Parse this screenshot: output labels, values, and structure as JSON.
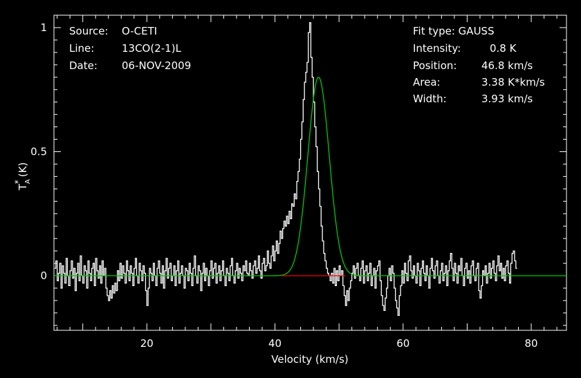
{
  "chart_data": {
    "type": "line",
    "xlabel": "Velocity (km/s)",
    "ylabel_main": "T",
    "ylabel_sub": "A",
    "ylabel_sup": "*",
    "ylabel_unit": "(K)",
    "xlim": [
      5.5,
      85.5
    ],
    "ylim": [
      -0.22,
      1.05
    ],
    "x_ticks": [
      20,
      40,
      60,
      80
    ],
    "y_ticks": [
      0,
      0.5,
      1
    ],
    "x_tick_labels": [
      "20",
      "40",
      "60",
      "80"
    ],
    "y_tick_labels": [
      "0",
      "0.5",
      "1"
    ],
    "info_left": [
      {
        "key": "Source:",
        "value": "O-CETI"
      },
      {
        "key": "Line:",
        "value": "13CO(2-1)L"
      },
      {
        "key": "Date:",
        "value": "06-NOV-2009"
      }
    ],
    "fit_type": "Fit type: GAUSS",
    "info_right": [
      {
        "key": "Intensity:",
        "value": "0.8 K"
      },
      {
        "key": "Position:",
        "value": "46.8 km/s"
      },
      {
        "key": "Area:",
        "value": "3.38 K*km/s"
      },
      {
        "key": "Width:",
        "value": "3.93 km/s"
      }
    ],
    "gaussian_fit": {
      "amplitude": 0.8,
      "center": 46.8,
      "fwhm": 3.93,
      "color": "#00cc00"
    },
    "baseline": {
      "x_start": 41.0,
      "x_end": 51.0,
      "y": 0,
      "color": "#ff0000"
    },
    "spectrum": {
      "color": "#ffffff",
      "channel_width": 0.2,
      "x_start": 5.6,
      "values": [
        0.03,
        0.06,
        -0.02,
        0.01,
        0.05,
        -0.05,
        0.04,
        0.01,
        -0.03,
        0.07,
        0.0,
        -0.04,
        0.02,
        0.06,
        -0.01,
        0.03,
        -0.06,
        0.01,
        0.05,
        -0.02,
        0.08,
        0.0,
        -0.03,
        0.04,
        0.02,
        -0.05,
        0.06,
        0.01,
        -0.02,
        0.03,
        0.05,
        -0.04,
        0.07,
        0.02,
        -0.01,
        0.04,
        -0.03,
        0.06,
        0.0,
        0.03,
        -0.05,
        -0.08,
        -0.1,
        -0.06,
        -0.09,
        -0.04,
        -0.07,
        -0.03,
        -0.06,
        0.02,
        -0.02,
        0.05,
        -0.01,
        0.04,
        0.01,
        -0.03,
        0.06,
        0.02,
        -0.02,
        0.04,
        0.01,
        -0.04,
        0.03,
        0.07,
        0.0,
        -0.03,
        0.05,
        0.02,
        -0.02,
        0.04,
        0.01,
        -0.06,
        -0.12,
        -0.05,
        0.03,
        0.01,
        -0.02,
        0.05,
        0.0,
        -0.04,
        0.03,
        0.06,
        0.01,
        -0.03,
        0.04,
        -0.05,
        0.02,
        0.07,
        -0.01,
        0.03,
        0.05,
        -0.02,
        0.0,
        0.04,
        -0.04,
        0.02,
        0.06,
        -0.03,
        0.01,
        0.04,
        0.0,
        -0.05,
        0.03,
        0.02,
        -0.02,
        0.05,
        0.01,
        -0.04,
        0.03,
        0.08,
        0.0,
        -0.03,
        0.04,
        0.02,
        -0.06,
        0.01,
        0.05,
        -0.02,
        0.03,
        0.0,
        -0.04,
        0.02,
        0.06,
        -0.01,
        0.03,
        0.05,
        -0.03,
        0.01,
        0.04,
        -0.02,
        0.02,
        0.06,
        0.0,
        -0.04,
        0.03,
        0.01,
        -0.02,
        0.04,
        0.07,
        0.0,
        -0.03,
        0.02,
        0.05,
        -0.01,
        0.03,
        0.01,
        -0.02,
        0.04,
        0.02,
        0.06,
        0.01,
        0.0,
        0.05,
        0.02,
        -0.01,
        0.04,
        0.06,
        0.01,
        0.03,
        0.08,
        0.02,
        -0.01,
        0.05,
        0.07,
        0.02,
        0.04,
        0.1,
        0.05,
        0.03,
        0.08,
        0.12,
        0.06,
        0.1,
        0.14,
        0.09,
        0.13,
        0.18,
        0.15,
        0.19,
        0.22,
        0.2,
        0.24,
        0.21,
        0.26,
        0.23,
        0.29,
        0.28,
        0.33,
        0.31,
        0.38,
        0.42,
        0.47,
        0.55,
        0.62,
        0.71,
        0.78,
        0.82,
        0.86,
        0.98,
        1.02,
        0.88,
        0.8,
        0.7,
        0.6,
        0.52,
        0.42,
        0.35,
        0.28,
        0.2,
        0.14,
        0.09,
        0.06,
        0.03,
        0.01,
        0.0,
        -0.02,
        0.01,
        -0.03,
        0.03,
        -0.04,
        0.02,
        -0.02,
        0.04,
        0.0,
        0.02,
        -0.04,
        -0.08,
        -0.12,
        -0.06,
        -0.1,
        -0.05,
        -0.02,
        0.01,
        0.04,
        -0.01,
        0.03,
        0.05,
        0.0,
        -0.02,
        0.03,
        0.06,
        -0.03,
        0.02,
        0.04,
        -0.02,
        0.01,
        0.05,
        -0.04,
        0.0,
        0.03,
        -0.05,
        0.02,
        0.04,
        0.06,
        -0.02,
        -0.08,
        -0.12,
        -0.14,
        -0.09,
        -0.05,
        0.0,
        0.03,
        -0.02,
        0.04,
        0.01,
        -0.05,
        -0.1,
        -0.13,
        -0.16,
        -0.08,
        -0.04,
        0.02,
        -0.03,
        0.05,
        0.01,
        -0.02,
        0.06,
        0.08,
        0.02,
        -0.01,
        0.04,
        0.0,
        -0.03,
        0.05,
        0.02,
        -0.04,
        0.03,
        0.06,
        0.01,
        -0.02,
        0.04,
        0.0,
        -0.05,
        0.03,
        0.07,
        0.02,
        -0.01,
        0.04,
        0.06,
        0.0,
        -0.03,
        0.02,
        0.05,
        -0.02,
        0.01,
        0.04,
        -0.04,
        0.02,
        0.06,
        0.09,
        0.03,
        -0.02,
        0.05,
        0.01,
        -0.03,
        0.04,
        0.02,
        0.07,
        0.0,
        -0.04,
        0.03,
        0.05,
        -0.01,
        0.02,
        -0.03,
        0.04,
        0.06,
        0.0,
        -0.02,
        0.03,
        0.05,
        -0.06,
        -0.09,
        -0.04,
        0.02,
        0.0,
        0.04,
        -0.03,
        0.01,
        0.05,
        -0.01,
        0.03,
        0.06,
        0.01,
        -0.02,
        0.04,
        0.08,
        0.02,
        0.05,
        -0.01,
        0.03,
        -0.02,
        0.04,
        0.06,
        0.01,
        -0.03,
        0.05,
        0.09,
        0.1,
        0.06,
        0.03
      ]
    }
  }
}
